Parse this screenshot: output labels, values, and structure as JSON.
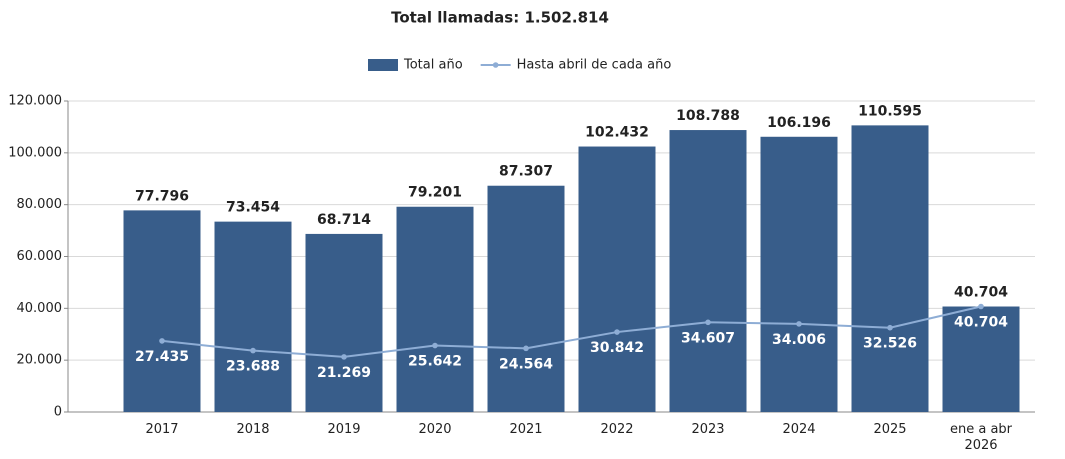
{
  "chart_data": {
    "type": "bar_line",
    "title": "Total llamadas: 1.502.814",
    "categories": [
      "2017",
      "2018",
      "2019",
      "2020",
      "2021",
      "2022",
      "2023",
      "2024",
      "2025",
      "ene a abr 2026"
    ],
    "series": [
      {
        "name": "Total año",
        "color": "#385d8a",
        "type": "bar",
        "values": [
          77796,
          73454,
          68714,
          79201,
          87307,
          102432,
          108788,
          106196,
          110595,
          40704
        ],
        "value_labels": [
          "77.796",
          "73.454",
          "68.714",
          "79.201",
          "87.307",
          "102.432",
          "108.788",
          "106.196",
          "110.595",
          "40.704"
        ]
      },
      {
        "name": "Hasta abril de cada año",
        "color": "#8eadd5",
        "type": "line",
        "values": [
          27435,
          23688,
          21269,
          25642,
          24564,
          30842,
          34607,
          34006,
          32526,
          40704
        ],
        "value_labels": [
          "27.435",
          "23.688",
          "21.269",
          "25.642",
          "24.564",
          "30.842",
          "34.607",
          "34.006",
          "32.526",
          "40.704"
        ]
      }
    ],
    "ylim": [
      0,
      120000
    ],
    "yticks": [
      0,
      {
        "value": 20000,
        "label": "20.000"
      },
      {
        "value": 40000,
        "label": "40.000"
      },
      {
        "value": 60000,
        "label": "60.000"
      },
      {
        "value": 80000,
        "label": "80.000"
      },
      {
        "value": 100000,
        "label": "100.000"
      },
      {
        "value": 120000,
        "label": "120.000"
      }
    ],
    "grid": true,
    "legend": "top"
  }
}
